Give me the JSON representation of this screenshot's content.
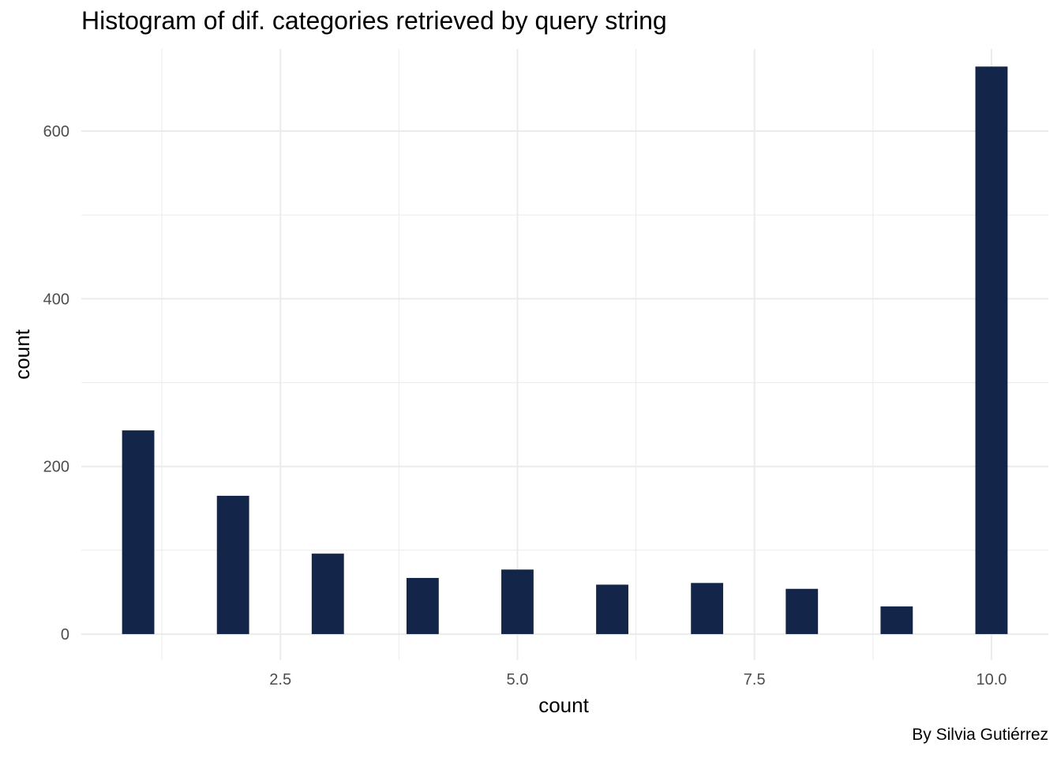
{
  "chart_data": {
    "type": "bar",
    "title": "Histogram of dif. categories retrieved by query string",
    "xlabel": "count",
    "ylabel": "count",
    "caption": "By Silvia Gutiérrez",
    "x": [
      1,
      2,
      3,
      4,
      5,
      6,
      7,
      8,
      9,
      10
    ],
    "values": [
      243,
      165,
      96,
      67,
      77,
      59,
      61,
      54,
      33,
      677
    ],
    "xlim": [
      0.4,
      10.6
    ],
    "ylim": [
      -31,
      698
    ],
    "x_ticks": [
      2.5,
      5.0,
      7.5,
      10.0
    ],
    "x_tick_labels": [
      "2.5",
      "5.0",
      "7.5",
      "10.0"
    ],
    "y_ticks": [
      0,
      200,
      400,
      600
    ],
    "y_tick_labels": [
      "0",
      "200",
      "400",
      "600"
    ],
    "grid": true,
    "bar_color": "#14254a",
    "grid_color": "#ebebeb"
  }
}
